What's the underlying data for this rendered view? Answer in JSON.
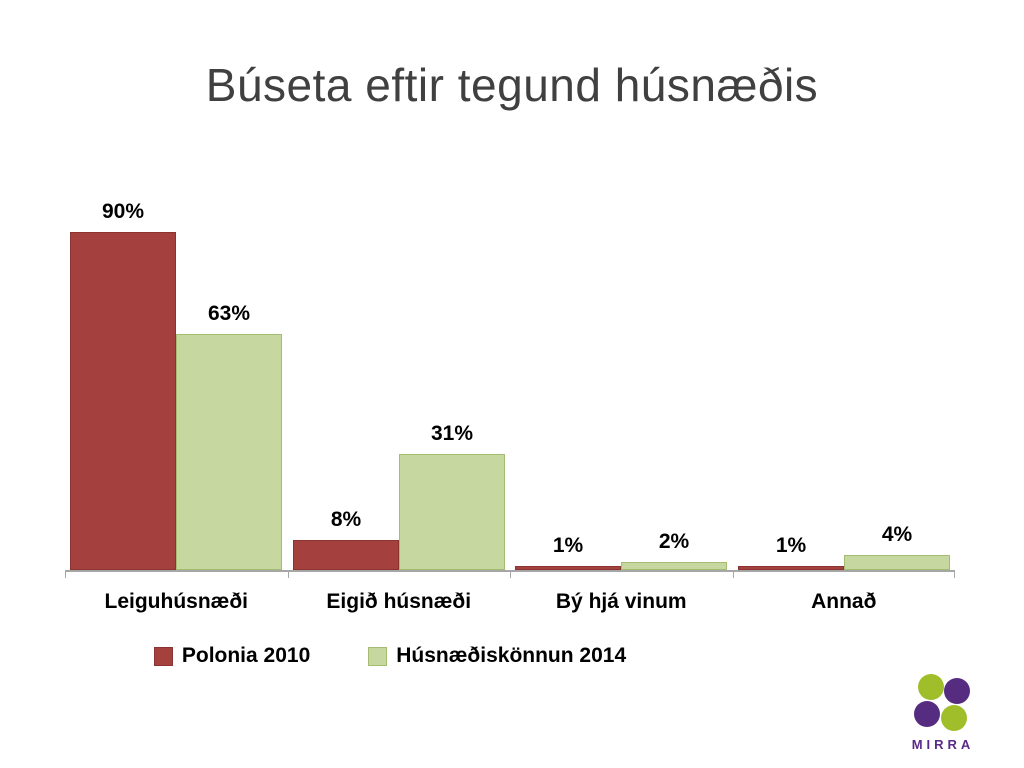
{
  "title": "Búseta eftir tegund húsnæðis",
  "chart_data": {
    "type": "bar",
    "title": "Búseta eftir tegund húsnæðis",
    "categories": [
      "Leiguhúsnæði",
      "Eigið húsnæði",
      "Bý hjá  vinum",
      "Annað"
    ],
    "series": [
      {
        "name": "Polonia 2010",
        "color": "#a4403d",
        "border": "#8a3331",
        "values": [
          90,
          8,
          1,
          1
        ]
      },
      {
        "name": "Húsnæðiskönnun 2014",
        "color": "#c6d8a0",
        "border": "#a3bb73",
        "values": [
          63,
          31,
          2,
          4
        ]
      }
    ],
    "value_suffix": "%",
    "data_labels": [
      "90%",
      "63%",
      "8%",
      "31%",
      "1%",
      "2%",
      "1%",
      "4%"
    ],
    "xlabel": "",
    "ylabel": "",
    "ylim": [
      0,
      100
    ],
    "grid": false,
    "legend_position": "bottom",
    "axis_color": "#a6a6a6"
  },
  "logo": {
    "text": "MIRRA",
    "text_color": "#5b2a86",
    "colors": {
      "green": "#a0bd2a",
      "purple": "#562c80"
    }
  }
}
